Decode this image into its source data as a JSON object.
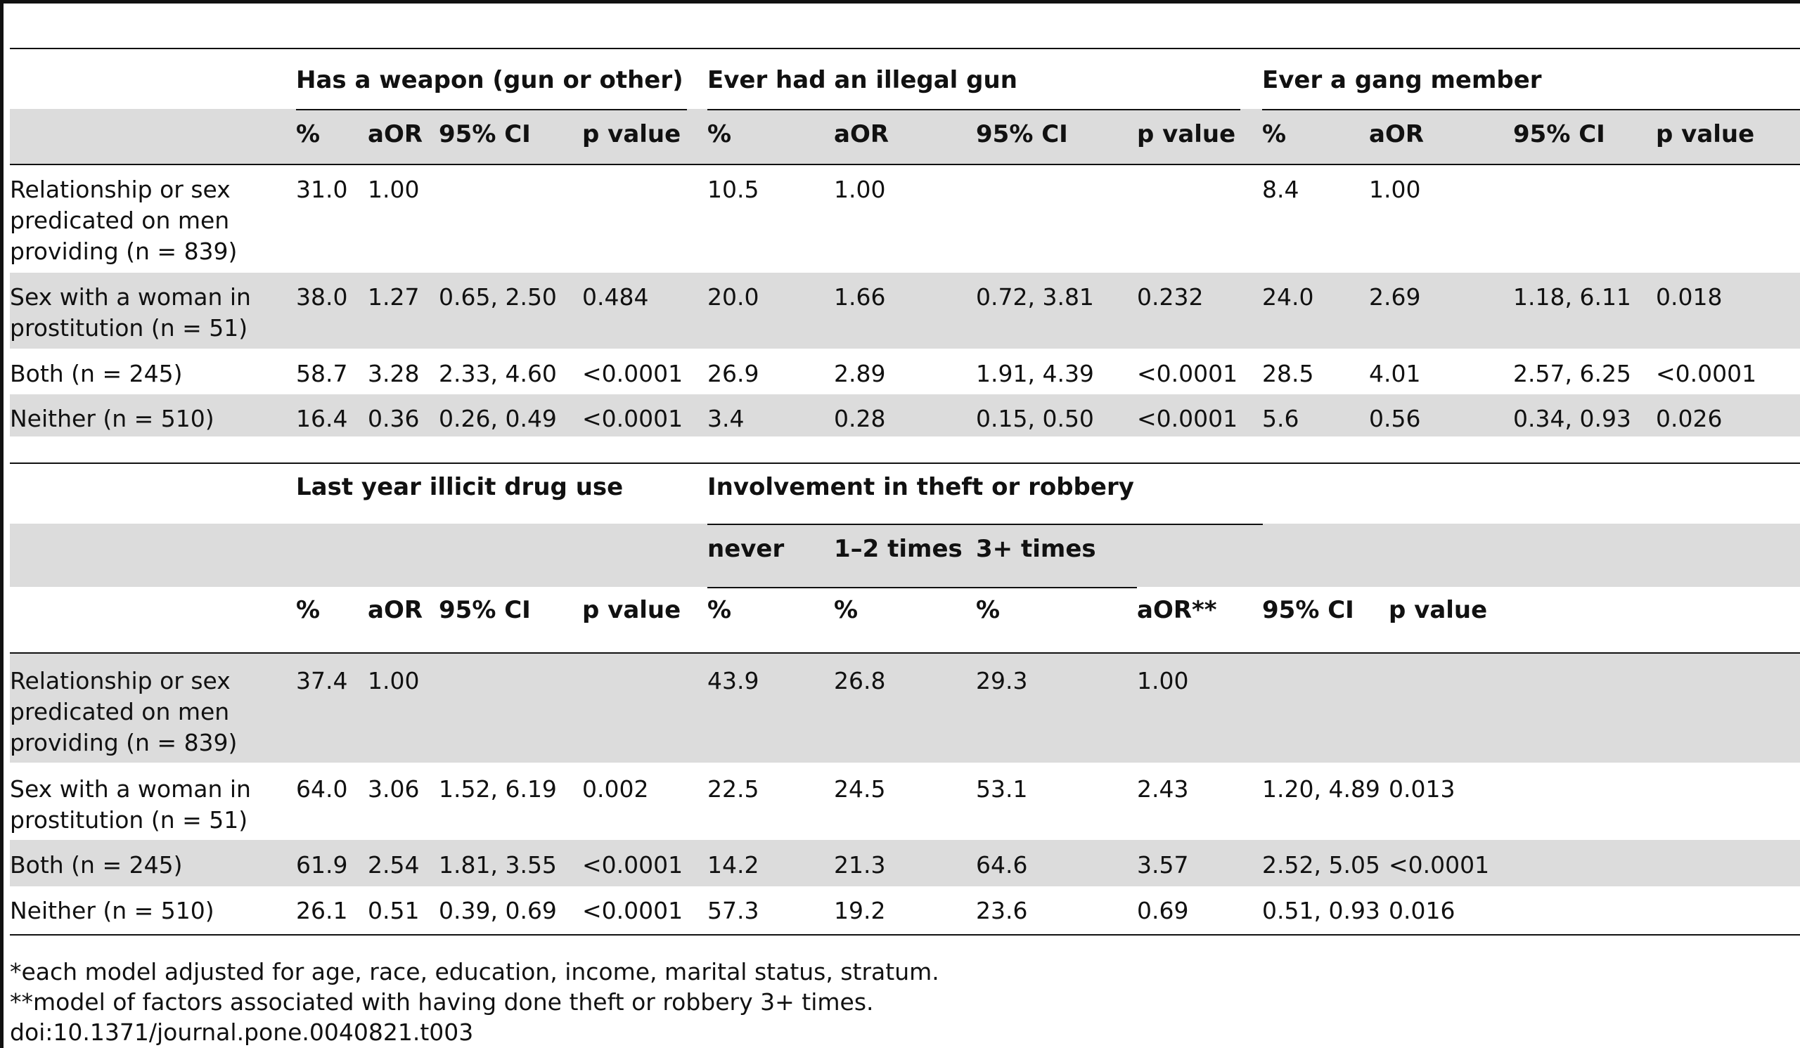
{
  "top_table": {
    "groups": [
      "Has a weapon (gun or other)",
      "Ever had an illegal gun",
      "Ever a gang member"
    ],
    "subheaders": [
      "%",
      "aOR",
      "95% CI",
      "p value",
      "%",
      "aOR",
      "95% CI",
      "p value",
      "%",
      "aOR",
      "95% CI",
      "p value"
    ],
    "rows": [
      {
        "label": "Relationship or sex\npredicated on men\nproviding (n = 839)",
        "cells": [
          "31.0",
          "1.00",
          "",
          "",
          "10.5",
          "1.00",
          "",
          "",
          "8.4",
          "1.00",
          "",
          ""
        ]
      },
      {
        "label": "Sex with a woman in\nprostitution (n = 51)",
        "cells": [
          "38.0",
          "1.27",
          "0.65, 2.50",
          "0.484",
          "20.0",
          "1.66",
          "0.72, 3.81",
          "0.232",
          "24.0",
          "2.69",
          "1.18, 6.11",
          "0.018"
        ]
      },
      {
        "label": "Both (n = 245)",
        "cells": [
          "58.7",
          "3.28",
          "2.33, 4.60",
          "<0.0001",
          "26.9",
          "2.89",
          "1.91, 4.39",
          "<0.0001",
          "28.5",
          "4.01",
          "2.57, 6.25",
          "<0.0001"
        ]
      },
      {
        "label": "Neither (n = 510)",
        "cells": [
          "16.4",
          "0.36",
          "0.26, 0.49",
          "<0.0001",
          "3.4",
          "0.28",
          "0.15, 0.50",
          "<0.0001",
          "5.6",
          "0.56",
          "0.34, 0.93",
          "0.026"
        ]
      }
    ]
  },
  "bottom_table": {
    "groups": [
      "Last year illicit drug use",
      "Involvement in theft or robbery"
    ],
    "theft_subgroups": [
      "never",
      "1–2 times",
      "3+ times"
    ],
    "subheaders": [
      "%",
      "aOR",
      "95% CI",
      "p value",
      "%",
      "%",
      "%",
      "aOR**",
      "95% CI",
      "p value"
    ],
    "rows": [
      {
        "label": "Relationship or sex\npredicated on men\nproviding (n = 839)",
        "cells": [
          "37.4",
          "1.00",
          "",
          "",
          "43.9",
          "26.8",
          "29.3",
          "1.00",
          "",
          ""
        ]
      },
      {
        "label": "Sex with a woman in\nprostitution (n = 51)",
        "cells": [
          "64.0",
          "3.06",
          "1.52, 6.19",
          "0.002",
          "22.5",
          "24.5",
          "53.1",
          "2.43",
          "1.20, 4.89",
          "0.013"
        ]
      },
      {
        "label": "Both (n = 245)",
        "cells": [
          "61.9",
          "2.54",
          "1.81, 3.55",
          "<0.0001",
          "14.2",
          "21.3",
          "64.6",
          "3.57",
          "2.52, 5.05",
          "<0.0001"
        ]
      },
      {
        "label": "Neither (n = 510)",
        "cells": [
          "26.1",
          "0.51",
          "0.39, 0.69",
          "<0.0001",
          "57.3",
          "19.2",
          "23.6",
          "0.69",
          "0.51, 0.93",
          "0.016"
        ]
      }
    ]
  },
  "footnotes": [
    "*each model adjusted for age, race, education, income, marital status, stratum.",
    "**model of factors associated with having done theft or robbery 3+ times.",
    "doi:10.1371/journal.pone.0040821.t003"
  ]
}
